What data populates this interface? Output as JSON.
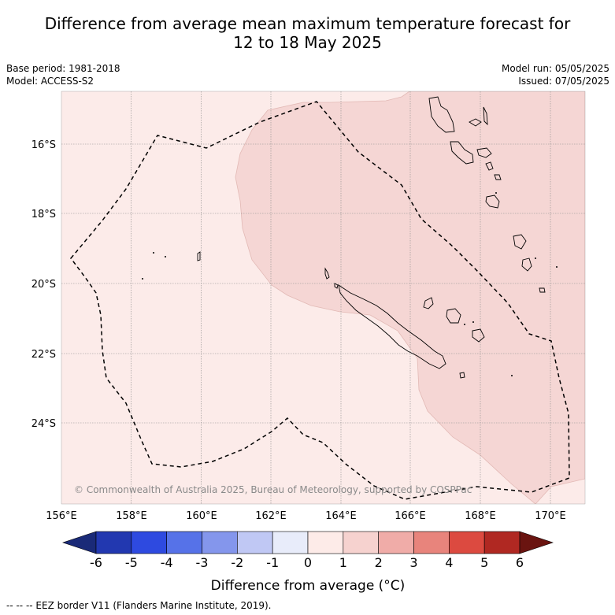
{
  "title_line1": "Difference from average mean maximum temperature forecast for",
  "title_line2": "12 to 18 May 2025",
  "base_period": "Base period: 1981-2018",
  "model": "Model: ACCESS-S2",
  "model_run": "Model run: 05/05/2025",
  "issued": "Issued: 07/05/2025",
  "copyright": "© Commonwealth of Australia 2025, Bureau of Meteorology, supported by COSPPac",
  "footnote": "--  --  -- EEZ border V11 (Flanders Marine Institute, 2019).",
  "lon_ticks": [
    "156°E",
    "158°E",
    "160°E",
    "162°E",
    "164°E",
    "166°E",
    "168°E",
    "170°E"
  ],
  "lat_ticks": [
    "16°S",
    "18°S",
    "20°S",
    "22°S",
    "24°S"
  ],
  "colorbar": {
    "title": "Difference from average (°C)",
    "labels": [
      "-6",
      "-5",
      "-4",
      "-3",
      "-2",
      "-1",
      "0",
      "1",
      "2",
      "3",
      "4",
      "5",
      "6"
    ],
    "colors": [
      "#1a2a78",
      "#2238b0",
      "#2e4ae0",
      "#5672e8",
      "#8496ec",
      "#c0c8f4",
      "#e8ecfa",
      "#fdebe8",
      "#f6d2cf",
      "#f0aca8",
      "#e8847c",
      "#dc4a40",
      "#b02822",
      "#6a1410"
    ]
  },
  "colors": {
    "anomaly_0_1": "#fcebe9",
    "anomaly_1_2": "#f5d6d4",
    "grid": "#888888",
    "coast": "#000000"
  }
}
